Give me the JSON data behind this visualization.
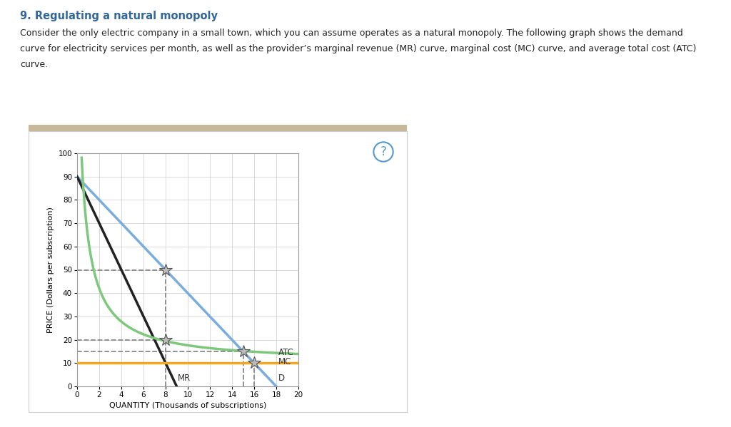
{
  "title": "9. Regulating a natural monopoly",
  "description_lines": [
    "Consider the only electric company in a small town, which you can assume operates as a natural monopoly. The following graph shows the demand",
    "curve for electricity services per month, as well as the provider’s marginal revenue (MR) curve, marginal cost (MC) curve, and average total cost (ATC)",
    "curve."
  ],
  "xlabel": "QUANTITY (Thousands of subscriptions)",
  "ylabel": "PRICE (Dollars per subscription)",
  "xlim": [
    0,
    20
  ],
  "ylim": [
    0,
    100
  ],
  "xticks": [
    0,
    2,
    4,
    6,
    8,
    10,
    12,
    14,
    16,
    18,
    20
  ],
  "yticks": [
    0,
    10,
    20,
    30,
    40,
    50,
    60,
    70,
    80,
    90,
    100
  ],
  "demand_color": "#7aacdc",
  "demand_label": "D",
  "demand_x0": 0,
  "demand_y0": 90,
  "demand_x1": 18,
  "demand_y1": 0,
  "mr_color": "#222222",
  "mr_label": "MR",
  "mr_x0": 0,
  "mr_y0": 90,
  "mr_x1": 9,
  "mr_y1": 0,
  "mc_y": 10,
  "mc_color": "#f5a623",
  "mc_label": "MC",
  "atc_color": "#7dc87d",
  "atc_label": "ATC",
  "atc_A": 10,
  "atc_B": 80,
  "atc_C": 0.5,
  "dashed_color": "#888888",
  "dashed_lw": 1.3,
  "star_points": [
    [
      8,
      50
    ],
    [
      8,
      20
    ],
    [
      15,
      15
    ],
    [
      16,
      10
    ]
  ],
  "star_color": "#bbbbbb",
  "star_edgecolor": "#555555",
  "header_color": "#c8b89a",
  "panel_border_color": "#cccccc",
  "title_color": "#336699",
  "text_color": "#222222",
  "qmark_color": "#5599cc",
  "grid_color": "#cccccc"
}
